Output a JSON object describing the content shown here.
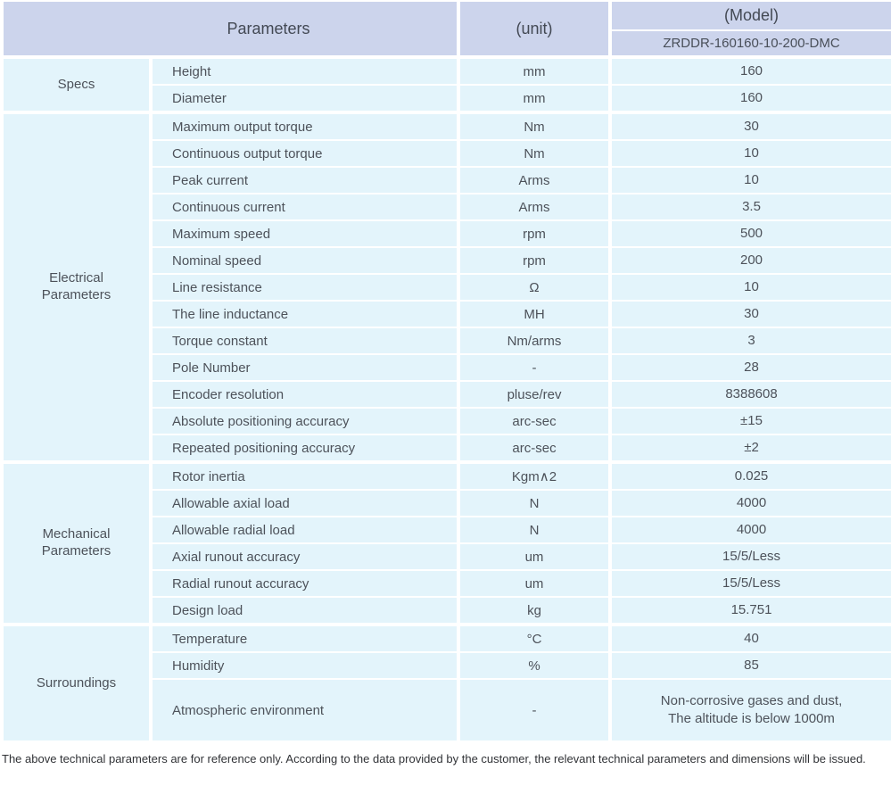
{
  "table": {
    "header": {
      "parameters": "Parameters",
      "unit": "(unit)",
      "model": "(Model)",
      "model_code": "ZRDDR-160160-10-200-DMC"
    },
    "sections": [
      {
        "label": "Specs",
        "rows": [
          {
            "param": "Height",
            "unit": "mm",
            "value": "160"
          },
          {
            "param": "Diameter",
            "unit": "mm",
            "value": "160"
          }
        ]
      },
      {
        "label": "Electrical Parameters",
        "rows": [
          {
            "param": "Maximum output torque",
            "unit": "Nm",
            "value": "30"
          },
          {
            "param": "Continuous output torque",
            "unit": "Nm",
            "value": "10"
          },
          {
            "param": "Peak current",
            "unit": "Arms",
            "value": "10"
          },
          {
            "param": "Continuous current",
            "unit": "Arms",
            "value": "3.5"
          },
          {
            "param": "Maximum speed",
            "unit": "rpm",
            "value": "500"
          },
          {
            "param": "Nominal speed",
            "unit": "rpm",
            "value": "200"
          },
          {
            "param": "Line resistance",
            "unit": "Ω",
            "value": "10"
          },
          {
            "param": "The line inductance",
            "unit": "MH",
            "value": "30"
          },
          {
            "param": "Torque constant",
            "unit": "Nm/arms",
            "value": "3"
          },
          {
            "param": "Pole Number",
            "unit": "-",
            "value": "28"
          },
          {
            "param": "Encoder resolution",
            "unit": "pluse/rev",
            "value": "8388608"
          },
          {
            "param": "Absolute positioning accuracy",
            "unit": "arc-sec",
            "value": "±15"
          },
          {
            "param": "Repeated positioning accuracy",
            "unit": "arc-sec",
            "value": "±2"
          }
        ]
      },
      {
        "label": "Mechanical Parameters",
        "rows": [
          {
            "param": "Rotor inertia",
            "unit": "Kgm∧2",
            "value": "0.025"
          },
          {
            "param": "Allowable axial load",
            "unit": "N",
            "value": "4000"
          },
          {
            "param": "Allowable radial load",
            "unit": "N",
            "value": "4000"
          },
          {
            "param": "Axial runout accuracy",
            "unit": "um",
            "value": "15/5/Less"
          },
          {
            "param": "Radial runout accuracy",
            "unit": "um",
            "value": "15/5/Less"
          },
          {
            "param": "Design load",
            "unit": "kg",
            "value": "15.751"
          }
        ]
      },
      {
        "label": "Surroundings",
        "rows": [
          {
            "param": "Temperature",
            "unit": "°C",
            "value": "40"
          },
          {
            "param": "Humidity",
            "unit": "%",
            "value": "85"
          },
          {
            "param": "Atmospheric environment",
            "unit": "-",
            "value": "Non-corrosive gases and dust,\nThe altitude is below 1000m"
          }
        ]
      }
    ]
  },
  "footer": {
    "note": "The above technical parameters are for reference only. According to the data provided by the customer, the relevant technical parameters and dimensions will be issued."
  },
  "colors": {
    "header_bg": "#ccd4ec",
    "row_bg": "#e3f4fb",
    "divider": "#ffffff",
    "text": "#4d525a"
  }
}
